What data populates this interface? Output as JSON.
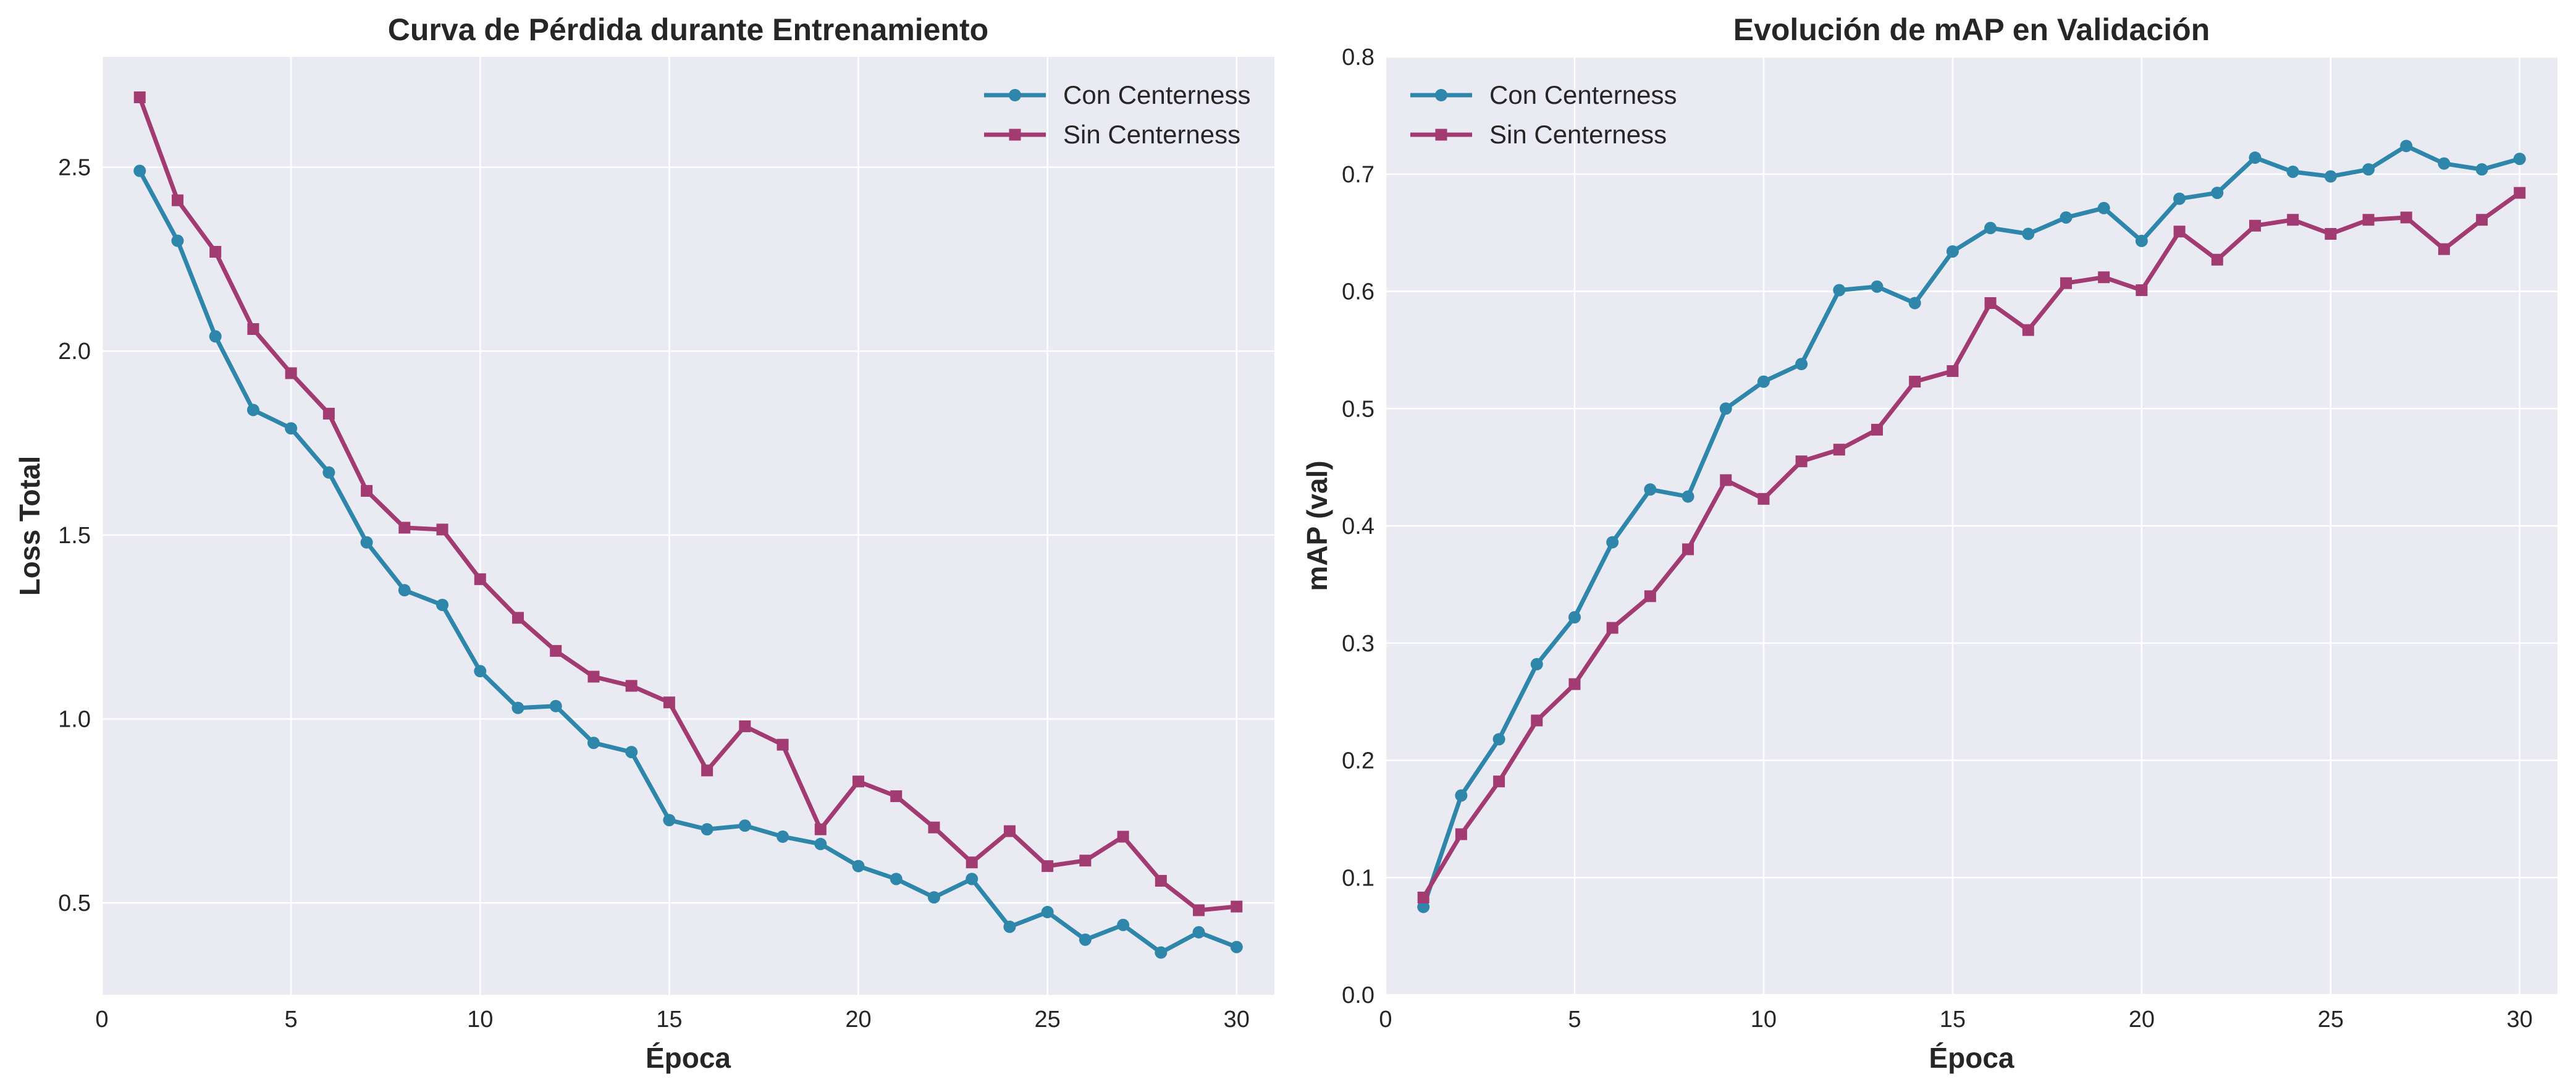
{
  "chart_data": [
    {
      "type": "line",
      "title": "Curva de Pérdida durante Entrenamiento",
      "xlabel": "Época",
      "ylabel": "Loss Total",
      "xlim": [
        0,
        31
      ],
      "ylim": [
        0.25,
        2.8
      ],
      "xticks": [
        0,
        5,
        10,
        15,
        20,
        25,
        30
      ],
      "yticks": [
        0.5,
        1.0,
        1.5,
        2.0,
        2.5
      ],
      "ytick_labels": [
        "0.5",
        "1.0",
        "1.5",
        "2.0",
        "2.5"
      ],
      "grid": true,
      "legend_position": "top-right",
      "x": [
        1,
        2,
        3,
        4,
        5,
        6,
        7,
        8,
        9,
        10,
        11,
        12,
        13,
        14,
        15,
        16,
        17,
        18,
        19,
        20,
        21,
        22,
        23,
        24,
        25,
        26,
        27,
        28,
        29,
        30
      ],
      "series": [
        {
          "name": "Con Centerness",
          "color": "#2e86ab",
          "marker": "circle",
          "values": [
            2.49,
            2.3,
            2.04,
            1.84,
            1.79,
            1.67,
            1.48,
            1.35,
            1.31,
            1.13,
            1.03,
            1.035,
            0.935,
            0.91,
            0.725,
            0.7,
            0.71,
            0.68,
            0.66,
            0.6,
            0.565,
            0.515,
            0.565,
            0.435,
            0.475,
            0.4,
            0.44,
            0.365,
            0.42,
            0.38
          ]
        },
        {
          "name": "Sin Centerness",
          "color": "#a23b72",
          "marker": "square",
          "values": [
            2.69,
            2.41,
            2.27,
            2.06,
            1.94,
            1.83,
            1.62,
            1.52,
            1.515,
            1.38,
            1.275,
            1.185,
            1.115,
            1.09,
            1.045,
            0.86,
            0.98,
            0.93,
            0.7,
            0.83,
            0.79,
            0.705,
            0.61,
            0.695,
            0.6,
            0.615,
            0.68,
            0.56,
            0.48,
            0.49
          ]
        }
      ]
    },
    {
      "type": "line",
      "title": "Evolución de mAP en Validación",
      "xlabel": "Época",
      "ylabel": "mAP (val)",
      "xlim": [
        0,
        31
      ],
      "ylim": [
        0.0,
        0.8
      ],
      "xticks": [
        0,
        5,
        10,
        15,
        20,
        25,
        30
      ],
      "yticks": [
        0.0,
        0.1,
        0.2,
        0.3,
        0.4,
        0.5,
        0.6,
        0.7,
        0.8
      ],
      "ytick_labels": [
        "0.0",
        "0.1",
        "0.2",
        "0.3",
        "0.4",
        "0.5",
        "0.6",
        "0.7",
        "0.8"
      ],
      "grid": true,
      "legend_position": "top-left",
      "x": [
        1,
        2,
        3,
        4,
        5,
        6,
        7,
        8,
        9,
        10,
        11,
        12,
        13,
        14,
        15,
        16,
        17,
        18,
        19,
        20,
        21,
        22,
        23,
        24,
        25,
        26,
        27,
        28,
        29,
        30
      ],
      "series": [
        {
          "name": "Con Centerness",
          "color": "#2e86ab",
          "marker": "circle",
          "values": [
            0.075,
            0.17,
            0.218,
            0.282,
            0.322,
            0.386,
            0.431,
            0.425,
            0.5,
            0.523,
            0.538,
            0.601,
            0.604,
            0.59,
            0.634,
            0.654,
            0.649,
            0.663,
            0.671,
            0.643,
            0.679,
            0.684,
            0.714,
            0.702,
            0.698,
            0.704,
            0.724,
            0.709,
            0.704,
            0.713
          ]
        },
        {
          "name": "Sin Centerness",
          "color": "#a23b72",
          "marker": "square",
          "values": [
            0.083,
            0.137,
            0.182,
            0.234,
            0.265,
            0.313,
            0.34,
            0.38,
            0.439,
            0.423,
            0.455,
            0.465,
            0.482,
            0.523,
            0.532,
            0.59,
            0.567,
            0.607,
            0.612,
            0.601,
            0.651,
            0.627,
            0.656,
            0.661,
            0.649,
            0.661,
            0.663,
            0.636,
            0.661,
            0.684
          ]
        }
      ]
    }
  ]
}
